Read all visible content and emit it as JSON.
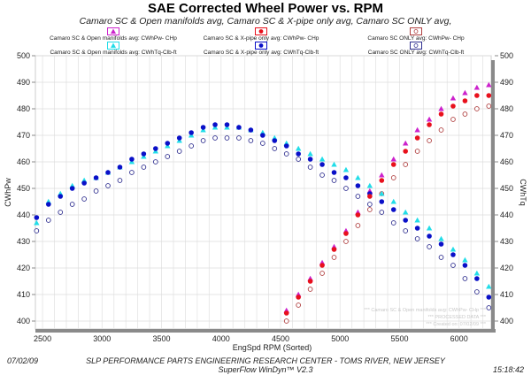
{
  "chart_data": {
    "type": "scatter",
    "title": "SAE Corrected Wheel Power vs. RPM",
    "subtitle": "Camaro SC & Open manifolds avg, Camaro SC & X-pipe only avg, Camaro SC ONLY avg,",
    "xlabel": "EngSpd  RPM   (Sorted)",
    "ylabel_left": "CWhPw",
    "ylabel_right": "CWhTq",
    "xlim": [
      2440,
      6270
    ],
    "ylim": [
      397,
      500
    ],
    "x_ticks": [
      2500,
      3000,
      3500,
      4000,
      4500,
      5000,
      5500,
      6000
    ],
    "y_ticks": [
      400,
      410,
      420,
      430,
      440,
      450,
      460,
      470,
      480,
      490,
      500
    ],
    "grid": true,
    "legend_placement": "top",
    "torque_x": [
      2450,
      2550,
      2650,
      2750,
      2850,
      2950,
      3050,
      3150,
      3250,
      3350,
      3450,
      3550,
      3650,
      3750,
      3850,
      3950,
      4050,
      4150,
      4250,
      4350,
      4450,
      4550,
      4650,
      4750,
      4850,
      4950,
      5050,
      5150,
      5250,
      5350,
      5450,
      5550,
      5650,
      5750,
      5850,
      5950,
      6050,
      6150,
      6250
    ],
    "power_x": [
      4550,
      4650,
      4750,
      4850,
      4950,
      5050,
      5150,
      5250,
      5350,
      5450,
      5550,
      5650,
      5750,
      5850,
      5950,
      6050,
      6150,
      6250
    ],
    "series": [
      {
        "name": "Camaro SC & Open manifolds avg: CWhPw- CHp",
        "xkey": "power_x",
        "marker": "triangle",
        "color": "#cc22cc",
        "values": [
          404,
          410,
          416,
          422,
          428,
          434,
          441,
          449,
          455,
          461,
          467,
          472,
          476,
          480,
          484,
          486,
          488,
          489
        ]
      },
      {
        "name": "Camaro SC & X-pipe only avg: CWhPw- CHp",
        "xkey": "power_x",
        "marker": "dot",
        "color": "#e8101c",
        "values": [
          403,
          409,
          415,
          421,
          427,
          433,
          440,
          447,
          453,
          459,
          464,
          469,
          474,
          478,
          481,
          483,
          485,
          485
        ]
      },
      {
        "name": "Camaro SC ONLY avg: CWhPw- CHp",
        "xkey": "power_x",
        "marker": "circle",
        "color": "#b04040",
        "values": [
          400,
          406,
          412,
          418,
          424,
          430,
          436,
          442,
          448,
          454,
          459,
          464,
          468,
          472,
          476,
          478,
          480,
          481
        ]
      },
      {
        "name": "Camaro SC & Open manifolds avg: CWhTq-Clb-ft",
        "xkey": "torque_x",
        "marker": "triangle",
        "color": "#22dde8",
        "values": [
          437,
          445,
          448,
          451,
          453,
          454,
          456,
          458,
          460,
          462,
          464,
          466,
          468,
          470,
          472,
          473,
          473,
          473,
          472,
          471,
          469,
          467,
          465,
          463,
          461,
          459,
          457,
          454,
          451,
          448,
          445,
          441,
          438,
          435,
          431,
          427,
          423,
          418,
          413
        ]
      },
      {
        "name": "Camaro SC & X-pipe only avg: CWhTq-Clb-ft",
        "xkey": "torque_x",
        "marker": "dot",
        "color": "#0a10c8",
        "values": [
          439,
          444,
          447,
          450,
          452,
          454,
          456,
          458,
          461,
          463,
          465,
          467,
          469,
          471,
          473,
          474,
          474,
          473,
          472,
          470,
          468,
          466,
          463,
          461,
          459,
          456,
          454,
          451,
          448,
          445,
          442,
          438,
          435,
          432,
          429,
          425,
          421,
          416,
          409
        ]
      },
      {
        "name": "Camaro SC ONLY avg: CWhTq-Clb-ft",
        "xkey": "torque_x",
        "marker": "circle",
        "color": "#303090",
        "values": [
          434,
          438,
          441,
          444,
          446,
          449,
          451,
          453,
          456,
          458,
          460,
          462,
          464,
          466,
          468,
          469,
          469,
          469,
          468,
          467,
          465,
          463,
          461,
          458,
          455,
          453,
          450,
          447,
          444,
          441,
          437,
          434,
          431,
          428,
          424,
          421,
          416,
          411,
          405
        ]
      }
    ],
    "watermark": [
      "*** Camaro SC & Open manifolds avg: CWhPw- CHp ***",
      "*** PROCESSED DATA ***",
      "*** Created on: 07/02/09 ***"
    ]
  },
  "footer": {
    "date": "07/02/09",
    "time": "15:18:42",
    "line1": "SLP PERFORMANCE PARTS ENGINEERING RESEARCH CENTER - TOMS RIVER, NEW JERSEY",
    "line2": "SuperFlow WinDyn™ V2.3"
  }
}
